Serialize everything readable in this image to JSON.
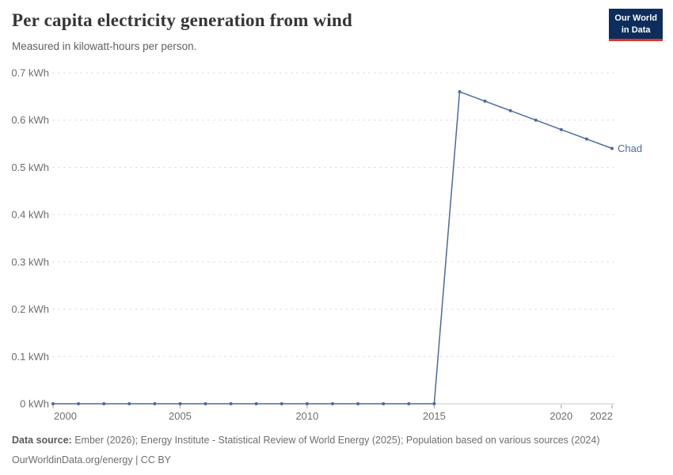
{
  "header": {
    "title": "Per capita electricity generation from wind",
    "subtitle": "Measured in kilowatt-hours per person.",
    "logo": {
      "line1": "Our World",
      "line2": "in Data",
      "bg_color": "#0d2e5c",
      "accent_color": "#e0362e"
    }
  },
  "chart_data": {
    "type": "line",
    "x": [
      2000,
      2001,
      2002,
      2003,
      2004,
      2005,
      2006,
      2007,
      2008,
      2009,
      2010,
      2011,
      2012,
      2013,
      2014,
      2015,
      2016,
      2017,
      2018,
      2019,
      2020,
      2021,
      2022
    ],
    "series": [
      {
        "name": "Chad",
        "color": "#4C6A9C",
        "values": [
          0,
          0,
          0,
          0,
          0,
          0,
          0,
          0,
          0,
          0,
          0,
          0,
          0,
          0,
          0,
          0,
          0.66,
          0.64,
          0.62,
          0.6,
          0.58,
          0.56,
          0.54
        ]
      }
    ],
    "x_ticks": [
      2000,
      2005,
      2010,
      2015,
      2020,
      2022
    ],
    "y_ticks": [
      {
        "value": 0.0,
        "label": "0 kWh"
      },
      {
        "value": 0.1,
        "label": "0.1 kWh"
      },
      {
        "value": 0.2,
        "label": "0.2 kWh"
      },
      {
        "value": 0.3,
        "label": "0.3 kWh"
      },
      {
        "value": 0.4,
        "label": "0.4 kWh"
      },
      {
        "value": 0.5,
        "label": "0.5 kWh"
      },
      {
        "value": 0.6,
        "label": "0.6 kWh"
      },
      {
        "value": 0.7,
        "label": "0.7 kWh"
      }
    ],
    "xlim": [
      2000,
      2022
    ],
    "ylim": [
      0,
      0.7
    ],
    "grid": "horizontal-dashed",
    "legend_position": "end-of-line-label",
    "grid_color": "#e0e0e0",
    "axis_color": "#c8c8c8",
    "tick_mark_color": "#a3a3a3",
    "tick_color": "#6e6e6e"
  },
  "footer": {
    "source_label": "Data source:",
    "source_text": " Ember (2026); Energy Institute - Statistical Review of World Energy (2025); Population based on various sources (2024)",
    "license_line": "OurWorldinData.org/energy | CC BY"
  }
}
